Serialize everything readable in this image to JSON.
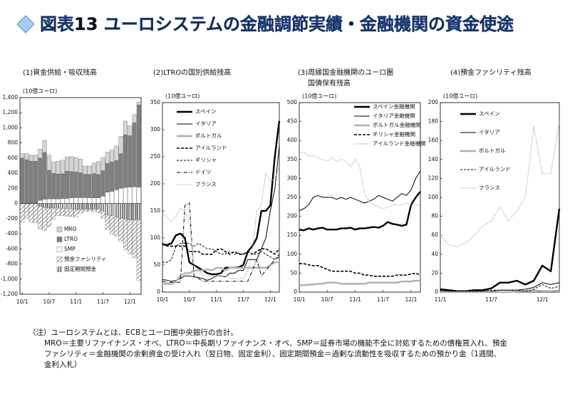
{
  "title": "図表13 ユーロシステムの金融調節実績・金融機関の資金使途",
  "notes": [
    "（注）ユーロシステムとは、ECBとユーロ圏中央銀行の合計。",
    "MRO＝主要リファイナンス・オペ、LTRO＝中長期リファイナンス・オペ、SMP＝証券市場の機能不全に対処するための債権買入れ、預金",
    "ファシリティ＝金融機関の余剰資金の受け入れ（翌日物、固定金利）、固定期間預金＝過剰な流動性を吸収するための預かり金（1週間、",
    "金利入札）"
  ],
  "chart_data": [
    {
      "type": "bar",
      "title": "(1)資金供給・吸収残高",
      "y_label": "(10億ユーロ)",
      "legend": "lower center",
      "categories": [
        "10/1",
        null,
        null,
        null,
        null,
        null,
        "10/7",
        null,
        null,
        null,
        null,
        null,
        "11/1",
        null,
        null,
        null,
        null,
        null,
        "11/7",
        null,
        null,
        null,
        null,
        null,
        "12/1",
        null,
        null
      ],
      "ylim": [
        -1200,
        1400
      ],
      "yticks": [
        {
          "value": 1400,
          "label": "1,400"
        },
        {
          "value": 1200,
          "label": "1,200"
        },
        {
          "value": 1000,
          "label": "1,000"
        },
        800,
        600,
        400,
        200,
        0,
        -200,
        -400,
        -600,
        -800,
        {
          "value": -1000,
          "label": "-1,000"
        },
        {
          "value": -1200,
          "label": "-1,200"
        }
      ],
      "series": [
        {
          "name": "MRO",
          "color": "#d4d4d4",
          "values": [
            60,
            80,
            80,
            80,
            120,
            160,
            200,
            150,
            170,
            180,
            190,
            200,
            190,
            180,
            110,
            110,
            140,
            170,
            170,
            150,
            160,
            190,
            230,
            180,
            130,
            110,
            40
          ]
        },
        {
          "name": "LTRO",
          "color": "#7f7f7f",
          "values": [
            600,
            580,
            560,
            560,
            560,
            620,
            380,
            340,
            330,
            330,
            360,
            350,
            340,
            330,
            310,
            310,
            320,
            310,
            340,
            380,
            390,
            390,
            460,
            700,
            680,
            850,
            1090
          ]
        },
        {
          "name": "SMP",
          "color": "#ffffff",
          "values": [
            0,
            0,
            0,
            0,
            40,
            55,
            60,
            60,
            61,
            63,
            67,
            73,
            77,
            77,
            77,
            75,
            75,
            74,
            96,
            150,
            160,
            180,
            200,
            210,
            217,
            219,
            214
          ]
        },
        {
          "name": "預金ファシリティ",
          "color": "#888888",
          "pattern": "hatch",
          "values": [
            -250,
            -200,
            -250,
            -250,
            -300,
            -300,
            -250,
            -150,
            -100,
            -100,
            -100,
            -100,
            -100,
            -50,
            -30,
            -30,
            -30,
            -50,
            -100,
            -200,
            -250,
            -250,
            -300,
            -400,
            -450,
            -500,
            -800
          ]
        },
        {
          "name": "固定期間預金",
          "color": "#444444",
          "pattern": "stripes",
          "values": [
            0,
            0,
            0,
            0,
            -40,
            -55,
            -60,
            -60,
            -61,
            -63,
            -67,
            -73,
            -77,
            -77,
            -77,
            -75,
            -75,
            -74,
            -96,
            -150,
            -160,
            -180,
            -200,
            -210,
            -217,
            -219,
            -214
          ]
        }
      ]
    },
    {
      "type": "line",
      "title": "(2)LTROの国別供給残高",
      "y_label": "(10億ユーロ)",
      "legend": "upper left",
      "categories": [
        "10/1",
        null,
        null,
        null,
        null,
        null,
        "10/7",
        null,
        null,
        null,
        null,
        null,
        "11/1",
        null,
        null,
        null,
        null,
        null,
        "11/7",
        null,
        null,
        null,
        null,
        null,
        "12/1",
        null,
        null
      ],
      "ylim": [
        0,
        350
      ],
      "yticks": [
        0,
        50,
        100,
        150,
        200,
        250,
        300,
        350
      ],
      "series": [
        {
          "name": "スペイン",
          "color": "#000000",
          "line_style": "thick",
          "values": [
            88,
            87,
            90,
            105,
            108,
            100,
            55,
            50,
            45,
            40,
            35,
            33,
            33,
            35,
            45,
            45,
            45,
            46,
            50,
            75,
            85,
            100,
            150,
            150,
            160,
            250,
            316
          ]
        },
        {
          "name": "イタリア",
          "color": "#000000",
          "line_style": "thin",
          "values": [
            23,
            22,
            20,
            22,
            25,
            30,
            30,
            28,
            27,
            25,
            22,
            25,
            30,
            30,
            28,
            35,
            35,
            40,
            40,
            60,
            60,
            60,
            80,
            100,
            150,
            190,
            270
          ]
        },
        {
          "name": "ポルトガル",
          "color": "#b0b0b0",
          "line_style": "thick",
          "values": [
            15,
            15,
            15,
            20,
            30,
            35,
            35,
            40,
            40,
            40,
            42,
            40,
            45,
            45,
            40,
            45,
            45,
            45,
            45,
            45,
            45,
            45,
            45,
            45,
            50,
            55,
            55
          ]
        },
        {
          "name": "アイルランド",
          "color": "#000000",
          "line_style": "dashed-thick",
          "values": [
            90,
            85,
            85,
            85,
            85,
            85,
            75,
            75,
            75,
            70,
            70,
            70,
            78,
            80,
            75,
            70,
            75,
            70,
            70,
            75,
            70,
            75,
            80,
            80,
            75,
            70,
            80
          ]
        },
        {
          "name": "ギリシャ",
          "color": "#000000",
          "line_style": "dashed",
          "values": [
            55,
            55,
            60,
            85,
            90,
            90,
            90,
            85,
            90,
            85,
            80,
            80,
            75,
            70,
            70,
            75,
            70,
            72,
            70,
            75,
            70,
            70,
            75,
            70,
            65,
            60,
            70
          ]
        },
        {
          "name": "ドイツ",
          "color": "#000000",
          "line_style": "dashdot",
          "values": [
            20,
            18,
            18,
            18,
            18,
            160,
            165,
            30,
            25,
            20,
            20,
            20,
            20,
            20,
            20,
            20,
            20,
            20,
            20,
            20,
            40,
            60,
            30,
            40,
            50,
            60,
            65
          ]
        },
        {
          "name": "フランス",
          "color": "#b0b0b0",
          "line_style": "dotted",
          "values": [
            145,
            140,
            130,
            140,
            155,
            150,
            130,
            50,
            40,
            30,
            30,
            30,
            30,
            30,
            30,
            25,
            25,
            25,
            25,
            40,
            80,
            150,
            160,
            220,
            205,
            210,
            230
          ]
        }
      ]
    },
    {
      "type": "line",
      "title": [
        "(3)周縁国金融機関のユーロ圏",
        "国債保有残高"
      ],
      "y_label": "(10億ユーロ)",
      "legend": "upper left",
      "categories": [
        "10/1",
        null,
        null,
        null,
        null,
        null,
        "10/7",
        null,
        null,
        null,
        null,
        null,
        "11/1",
        null,
        null,
        null,
        null,
        null,
        "11/7",
        null,
        null,
        null,
        null,
        null,
        "12/1",
        null,
        null
      ],
      "ylim": [
        0,
        500
      ],
      "yticks": [
        0,
        50,
        100,
        150,
        200,
        250,
        300,
        350,
        400,
        450,
        500
      ],
      "series": [
        {
          "name": "スペイン金融機関",
          "color": "#000000",
          "line_style": "thick",
          "values": [
            165,
            163,
            168,
            165,
            168,
            170,
            165,
            165,
            165,
            168,
            168,
            170,
            165,
            168,
            168,
            170,
            172,
            170,
            175,
            185,
            180,
            178,
            175,
            178,
            230,
            250,
            265
          ]
        },
        {
          "name": "イタリア金融機関",
          "color": "#000000",
          "line_style": "thin",
          "values": [
            215,
            220,
            230,
            250,
            255,
            250,
            250,
            250,
            245,
            250,
            245,
            250,
            245,
            240,
            235,
            240,
            245,
            255,
            250,
            245,
            240,
            250,
            260,
            255,
            270,
            300,
            320
          ]
        },
        {
          "name": "ポルトガル金融機関",
          "color": "#b0b0b0",
          "line_style": "thick",
          "values": [
            18,
            18,
            20,
            20,
            22,
            22,
            25,
            25,
            25,
            22,
            22,
            22,
            22,
            22,
            22,
            25,
            25,
            25,
            25,
            25,
            25,
            25,
            28,
            28,
            28,
            30,
            30
          ]
        },
        {
          "name": "ギリシャ金融機関",
          "color": "#000000",
          "line_style": "dashed-thick",
          "values": [
            75,
            75,
            72,
            70,
            70,
            65,
            60,
            55,
            55,
            55,
            55,
            55,
            50,
            50,
            45,
            45,
            42,
            42,
            42,
            42,
            42,
            45,
            45,
            45,
            48,
            50,
            45
          ]
        },
        {
          "name": "アイルランド金融機関",
          "color": "#b0b0b0",
          "line_style": "dotted",
          "values": [
            365,
            370,
            360,
            360,
            355,
            350,
            345,
            355,
            345,
            350,
            345,
            330,
            350,
            330,
            260,
            240,
            230,
            225,
            220,
            225,
            230,
            230,
            230,
            235,
            230,
            230,
            230
          ]
        }
      ]
    },
    {
      "type": "line",
      "title": "(4)預金ファシリティ残高",
      "y_label": "(10億ユーロ)",
      "legend": "upper left",
      "categories": [
        "11/1",
        null,
        null,
        null,
        null,
        null,
        "11/7",
        null,
        null,
        null,
        null,
        null,
        "12/1",
        null,
        null
      ],
      "ylim": [
        0,
        200
      ],
      "yticks": [
        0,
        20,
        40,
        60,
        80,
        100,
        120,
        140,
        160,
        180,
        200
      ],
      "series": [
        {
          "name": "スペイン",
          "color": "#000000",
          "line_style": "thick",
          "values": [
            3,
            2,
            1,
            1,
            2,
            2,
            4,
            10,
            10,
            12,
            8,
            12,
            28,
            22,
            88
          ]
        },
        {
          "name": "イタリア",
          "color": "#000000",
          "line_style": "thin",
          "values": [
            1,
            1,
            1,
            1,
            1,
            1,
            1,
            2,
            2,
            2,
            3,
            5,
            10,
            8,
            10
          ]
        },
        {
          "name": "ポルトガル",
          "color": "#b0b0b0",
          "line_style": "thick",
          "values": [
            0,
            0,
            0,
            0,
            0,
            0,
            0,
            0,
            0,
            1,
            1,
            2,
            1,
            1,
            2
          ]
        },
        {
          "name": "アイルランド",
          "color": "#000000",
          "line_style": "dashed",
          "values": [
            2,
            1,
            1,
            1,
            1,
            1,
            2,
            2,
            2,
            2,
            1,
            3,
            8,
            4,
            6
          ]
        },
        {
          "name": "フランス",
          "color": "#b0b0b0",
          "line_style": "dotted",
          "values": [
            60,
            50,
            48,
            52,
            60,
            70,
            75,
            90,
            75,
            85,
            100,
            175,
            125,
            125,
            180
          ]
        }
      ]
    }
  ]
}
